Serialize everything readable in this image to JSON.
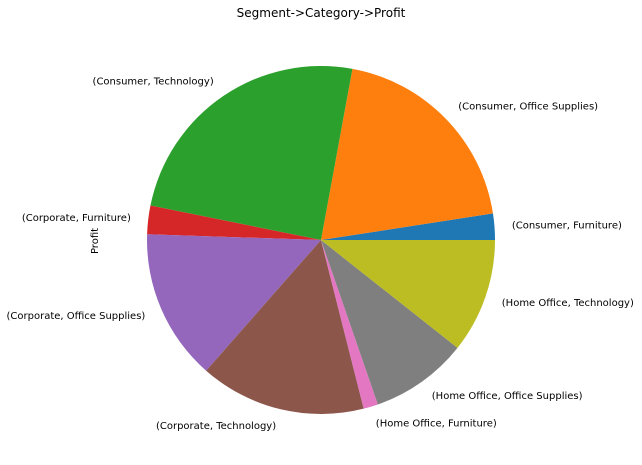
{
  "chart_data": {
    "type": "pie",
    "title": "Segment->Category->Profit",
    "ylabel": "Profit",
    "xlabel": "",
    "labels": [
      "(Consumer, Furniture)",
      "(Consumer, Office Supplies)",
      "(Consumer, Technology)",
      "(Corporate, Furniture)",
      "(Corporate, Office Supplies)",
      "(Corporate, Technology)",
      "(Home Office, Furniture)",
      "(Home Office, Office Supplies)",
      "(Home Office, Technology)"
    ],
    "values": [
      6991,
      56330,
      70797,
      7585,
      40228,
      44167,
      3875,
      25934,
      30493
    ],
    "colors": [
      "#1f77b4",
      "#ff7f0e",
      "#2ca02c",
      "#d62728",
      "#9467bd",
      "#8c564b",
      "#e377c2",
      "#7f7f7f",
      "#bcbd22"
    ],
    "start_angle_deg": 0,
    "direction": "counterclockwise",
    "legend": "none"
  }
}
